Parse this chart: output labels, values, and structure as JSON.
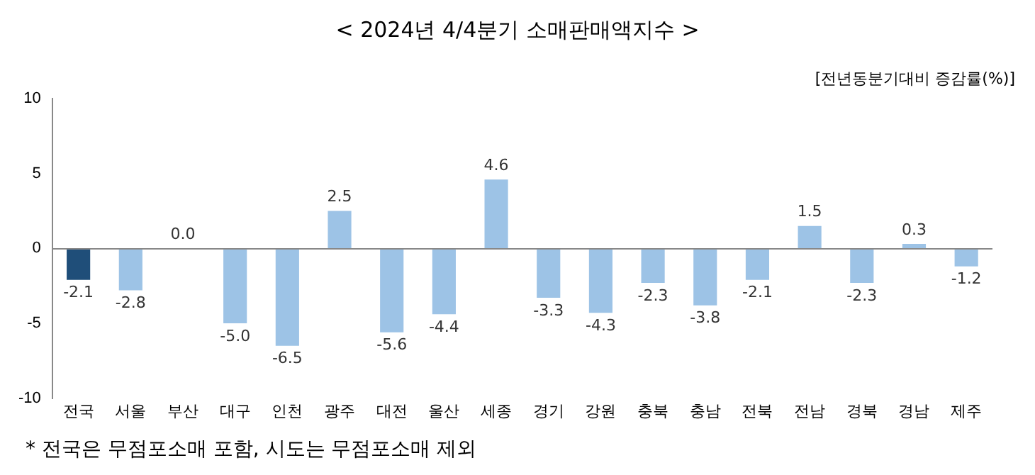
{
  "chart_data": {
    "type": "bar",
    "title": "< 2024년  4/4분기  소매판매액지수  >",
    "ylabel": "[전년동분기대비 증감률(%)]",
    "categories": [
      "전국",
      "서울",
      "부산",
      "대구",
      "인천",
      "광주",
      "대전",
      "울산",
      "세종",
      "경기",
      "강원",
      "충북",
      "충남",
      "전북",
      "전남",
      "경북",
      "경남",
      "제주"
    ],
    "values": [
      -2.1,
      -2.8,
      0.0,
      -5.0,
      -6.5,
      2.5,
      -5.6,
      -4.4,
      4.6,
      -3.3,
      -4.3,
      -2.3,
      -3.8,
      -2.1,
      1.5,
      -2.3,
      0.3,
      -1.2
    ],
    "colors": [
      "#1f4e79",
      "#9dc3e6",
      "#9dc3e6",
      "#9dc3e6",
      "#9dc3e6",
      "#9dc3e6",
      "#9dc3e6",
      "#9dc3e6",
      "#9dc3e6",
      "#9dc3e6",
      "#9dc3e6",
      "#9dc3e6",
      "#9dc3e6",
      "#9dc3e6",
      "#9dc3e6",
      "#9dc3e6",
      "#9dc3e6",
      "#9dc3e6"
    ],
    "value_labels": [
      "-2.1",
      "-2.8",
      "0.0",
      "-5.0",
      "-6.5",
      "2.5",
      "-5.6",
      "-4.4",
      "4.6",
      "-3.3",
      "-4.3",
      "-2.3",
      "-3.8",
      "-2.1",
      "1.5",
      "-2.3",
      "0.3",
      "-1.2"
    ],
    "ref_lines": [
      {
        "axis": "y",
        "value": 0,
        "color": "#888888"
      }
    ],
    "ylim": [
      -10,
      10
    ],
    "yticks": [
      -10,
      -5,
      0,
      5,
      10
    ],
    "grid": false,
    "legend": false,
    "annotations": [
      "* 전국은 무점포소매 포함, 시도는 무점포소매 제외"
    ]
  }
}
